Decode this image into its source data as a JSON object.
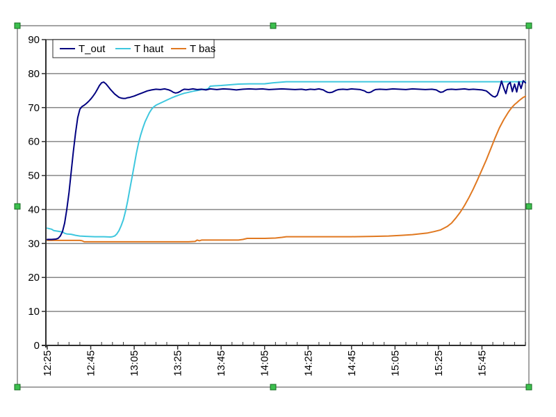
{
  "chart_object": {
    "selected": true,
    "handle_fill": "#3cbf4e",
    "handle_stroke": "#15691f",
    "frame_stroke": "#4a4a4a",
    "background": "#ffffff"
  },
  "chart_data": {
    "type": "line",
    "title": "",
    "grid": "horizontal",
    "grid_color": "#868686",
    "plot_border_color": "#6b6b6b",
    "axis_color": "#2e2e2e",
    "x_axis": {
      "tick_labels": [
        "12:25",
        "12:45",
        "13:05",
        "13:25",
        "13:45",
        "14:05",
        "14:25",
        "14:45",
        "15:05",
        "15:25",
        "15:45"
      ],
      "major_interval_min": 20,
      "minor_interval_min": 5,
      "domain_minutes": [
        0,
        220
      ]
    },
    "y_axis": {
      "ticks": [
        0,
        10,
        20,
        30,
        40,
        50,
        60,
        70,
        80,
        90
      ],
      "range": [
        0,
        90
      ]
    },
    "legend": {
      "position": "top-left",
      "entries": [
        "T_out",
        "T haut",
        "T bas"
      ]
    },
    "series": [
      {
        "name": "T_out",
        "color": "#000080",
        "points": [
          [
            0,
            31.2
          ],
          [
            2,
            31.2
          ],
          [
            4,
            31.3
          ],
          [
            5,
            31.5
          ],
          [
            6,
            32.2
          ],
          [
            7,
            33.5
          ],
          [
            8,
            36
          ],
          [
            9,
            40
          ],
          [
            10,
            45
          ],
          [
            11,
            51
          ],
          [
            12,
            57
          ],
          [
            13,
            62.5
          ],
          [
            14,
            67
          ],
          [
            15,
            69.5
          ],
          [
            16,
            70.3
          ],
          [
            17,
            70.7
          ],
          [
            18,
            71.2
          ],
          [
            19,
            71.8
          ],
          [
            20,
            72.5
          ],
          [
            21,
            73.3
          ],
          [
            22,
            74.2
          ],
          [
            23,
            75.3
          ],
          [
            24,
            76.5
          ],
          [
            25,
            77.3
          ],
          [
            26,
            77.5
          ],
          [
            27,
            77
          ],
          [
            28,
            76.2
          ],
          [
            29,
            75.4
          ],
          [
            30,
            74.7
          ],
          [
            31,
            74
          ],
          [
            32,
            73.5
          ],
          [
            33,
            73
          ],
          [
            34,
            72.8
          ],
          [
            35,
            72.7
          ],
          [
            36,
            72.7
          ],
          [
            37,
            72.9
          ],
          [
            38,
            73
          ],
          [
            40,
            73.4
          ],
          [
            42,
            73.9
          ],
          [
            44,
            74.4
          ],
          [
            46,
            74.9
          ],
          [
            48,
            75.2
          ],
          [
            50,
            75.4
          ],
          [
            52,
            75.3
          ],
          [
            54,
            75.5
          ],
          [
            56,
            75.2
          ],
          [
            57,
            74.9
          ],
          [
            58,
            74.5
          ],
          [
            59,
            74.3
          ],
          [
            60,
            74.4
          ],
          [
            61,
            74.7
          ],
          [
            62,
            75.1
          ],
          [
            63,
            75.4
          ],
          [
            65,
            75.3
          ],
          [
            67,
            75.5
          ],
          [
            69,
            75.3
          ],
          [
            71,
            75.4
          ],
          [
            73,
            75.2
          ],
          [
            75,
            75.5
          ],
          [
            78,
            75.3
          ],
          [
            81,
            75.5
          ],
          [
            84,
            75.4
          ],
          [
            87,
            75.2
          ],
          [
            90,
            75.4
          ],
          [
            93,
            75.5
          ],
          [
            96,
            75.4
          ],
          [
            99,
            75.5
          ],
          [
            102,
            75.3
          ],
          [
            105,
            75.4
          ],
          [
            108,
            75.5
          ],
          [
            111,
            75.4
          ],
          [
            114,
            75.3
          ],
          [
            117,
            75.4
          ],
          [
            119,
            75.2
          ],
          [
            121,
            75.4
          ],
          [
            123,
            75.3
          ],
          [
            125,
            75.5
          ],
          [
            127,
            75.2
          ],
          [
            128,
            74.8
          ],
          [
            129,
            74.5
          ],
          [
            130,
            74.4
          ],
          [
            131,
            74.5
          ],
          [
            132,
            74.8
          ],
          [
            133,
            75.1
          ],
          [
            134,
            75.3
          ],
          [
            136,
            75.4
          ],
          [
            138,
            75.3
          ],
          [
            140,
            75.5
          ],
          [
            142,
            75.4
          ],
          [
            144,
            75.3
          ],
          [
            146,
            74.9
          ],
          [
            147,
            74.5
          ],
          [
            148,
            74.4
          ],
          [
            149,
            74.6
          ],
          [
            150,
            75
          ],
          [
            151,
            75.3
          ],
          [
            153,
            75.4
          ],
          [
            156,
            75.3
          ],
          [
            159,
            75.5
          ],
          [
            162,
            75.4
          ],
          [
            165,
            75.3
          ],
          [
            168,
            75.5
          ],
          [
            171,
            75.4
          ],
          [
            174,
            75.3
          ],
          [
            177,
            75.4
          ],
          [
            179,
            75.2
          ],
          [
            180,
            74.8
          ],
          [
            181,
            74.5
          ],
          [
            182,
            74.6
          ],
          [
            183,
            75
          ],
          [
            184,
            75.3
          ],
          [
            186,
            75.4
          ],
          [
            188,
            75.3
          ],
          [
            190,
            75.4
          ],
          [
            192,
            75.5
          ],
          [
            194,
            75.3
          ],
          [
            196,
            75.4
          ],
          [
            198,
            75.3
          ],
          [
            200,
            75.2
          ],
          [
            202,
            74.9
          ],
          [
            203,
            74.4
          ],
          [
            204,
            73.8
          ],
          [
            205,
            73.3
          ],
          [
            206,
            73.1
          ],
          [
            207,
            73.6
          ],
          [
            208,
            75.5
          ],
          [
            209,
            77.8
          ],
          [
            210,
            75.8
          ],
          [
            211,
            74.1
          ],
          [
            212,
            76.8
          ],
          [
            213,
            77.4
          ],
          [
            214,
            74.7
          ],
          [
            215,
            76.9
          ],
          [
            216,
            74.6
          ],
          [
            217,
            77.6
          ],
          [
            218,
            75.6
          ],
          [
            219,
            77.9
          ],
          [
            220,
            77.3
          ]
        ]
      },
      {
        "name": "T haut",
        "color": "#3ec7de",
        "points": [
          [
            0,
            34.5
          ],
          [
            2,
            34.2
          ],
          [
            3,
            33.8
          ],
          [
            5,
            33.6
          ],
          [
            7,
            33.4
          ],
          [
            8,
            33
          ],
          [
            9,
            32.8
          ],
          [
            11,
            32.7
          ],
          [
            13,
            32.4
          ],
          [
            15,
            32.2
          ],
          [
            18,
            32.1
          ],
          [
            22,
            32
          ],
          [
            26,
            32
          ],
          [
            29,
            31.9
          ],
          [
            30,
            32
          ],
          [
            31,
            32.2
          ],
          [
            32,
            32.8
          ],
          [
            33,
            33.8
          ],
          [
            34,
            35.2
          ],
          [
            35,
            37
          ],
          [
            36,
            39.5
          ],
          [
            37,
            42.5
          ],
          [
            38,
            46
          ],
          [
            39,
            49.5
          ],
          [
            40,
            53
          ],
          [
            41,
            56.5
          ],
          [
            42,
            59.5
          ],
          [
            43,
            62
          ],
          [
            44,
            64
          ],
          [
            45,
            65.8
          ],
          [
            46,
            67.2
          ],
          [
            47,
            68.5
          ],
          [
            48,
            69.5
          ],
          [
            49,
            70.2
          ],
          [
            50,
            70.7
          ],
          [
            51,
            71
          ],
          [
            53,
            71.6
          ],
          [
            55,
            72.2
          ],
          [
            57,
            72.8
          ],
          [
            59,
            73.3
          ],
          [
            61,
            73.8
          ],
          [
            63,
            74.2
          ],
          [
            65,
            74.5
          ],
          [
            67,
            74.8
          ],
          [
            69,
            75
          ],
          [
            71,
            75.3
          ],
          [
            73,
            75.4
          ],
          [
            74,
            75.5
          ],
          [
            75,
            76.3
          ],
          [
            77,
            76.4
          ],
          [
            80,
            76.5
          ],
          [
            84,
            76.7
          ],
          [
            88,
            76.9
          ],
          [
            93,
            77
          ],
          [
            100,
            77
          ],
          [
            104,
            77.3
          ],
          [
            110,
            77.6
          ],
          [
            120,
            77.6
          ],
          [
            140,
            77.6
          ],
          [
            160,
            77.6
          ],
          [
            180,
            77.6
          ],
          [
            200,
            77.6
          ],
          [
            220,
            77.6
          ]
        ]
      },
      {
        "name": "T bas",
        "color": "#e07820",
        "points": [
          [
            0,
            30.9
          ],
          [
            8,
            30.9
          ],
          [
            15,
            30.9
          ],
          [
            16,
            30.8
          ],
          [
            17,
            30.5
          ],
          [
            25,
            30.5
          ],
          [
            35,
            30.5
          ],
          [
            45,
            30.5
          ],
          [
            55,
            30.5
          ],
          [
            65,
            30.5
          ],
          [
            68,
            30.6
          ],
          [
            69,
            31
          ],
          [
            70,
            30.8
          ],
          [
            71,
            31
          ],
          [
            80,
            31
          ],
          [
            88,
            31
          ],
          [
            90,
            31.2
          ],
          [
            92,
            31.5
          ],
          [
            100,
            31.5
          ],
          [
            105,
            31.6
          ],
          [
            108,
            31.8
          ],
          [
            110,
            32
          ],
          [
            120,
            32
          ],
          [
            130,
            32
          ],
          [
            140,
            32
          ],
          [
            150,
            32.1
          ],
          [
            157,
            32.2
          ],
          [
            163,
            32.4
          ],
          [
            168,
            32.6
          ],
          [
            172,
            32.9
          ],
          [
            175,
            33.1
          ],
          [
            178,
            33.5
          ],
          [
            181,
            34
          ],
          [
            184,
            35
          ],
          [
            186,
            36
          ],
          [
            188,
            37.5
          ],
          [
            190,
            39.2
          ],
          [
            192,
            41.2
          ],
          [
            194,
            43.5
          ],
          [
            196,
            46
          ],
          [
            198,
            48.8
          ],
          [
            200,
            51.7
          ],
          [
            202,
            54.6
          ],
          [
            204,
            57.8
          ],
          [
            206,
            61
          ],
          [
            208,
            64
          ],
          [
            210,
            66.4
          ],
          [
            212,
            68.5
          ],
          [
            213,
            69.4
          ],
          [
            214,
            70.2
          ],
          [
            215,
            70.9
          ],
          [
            216,
            71.4
          ],
          [
            217,
            72
          ],
          [
            218,
            72.5
          ],
          [
            219,
            73
          ],
          [
            220,
            73.3
          ]
        ]
      }
    ]
  }
}
